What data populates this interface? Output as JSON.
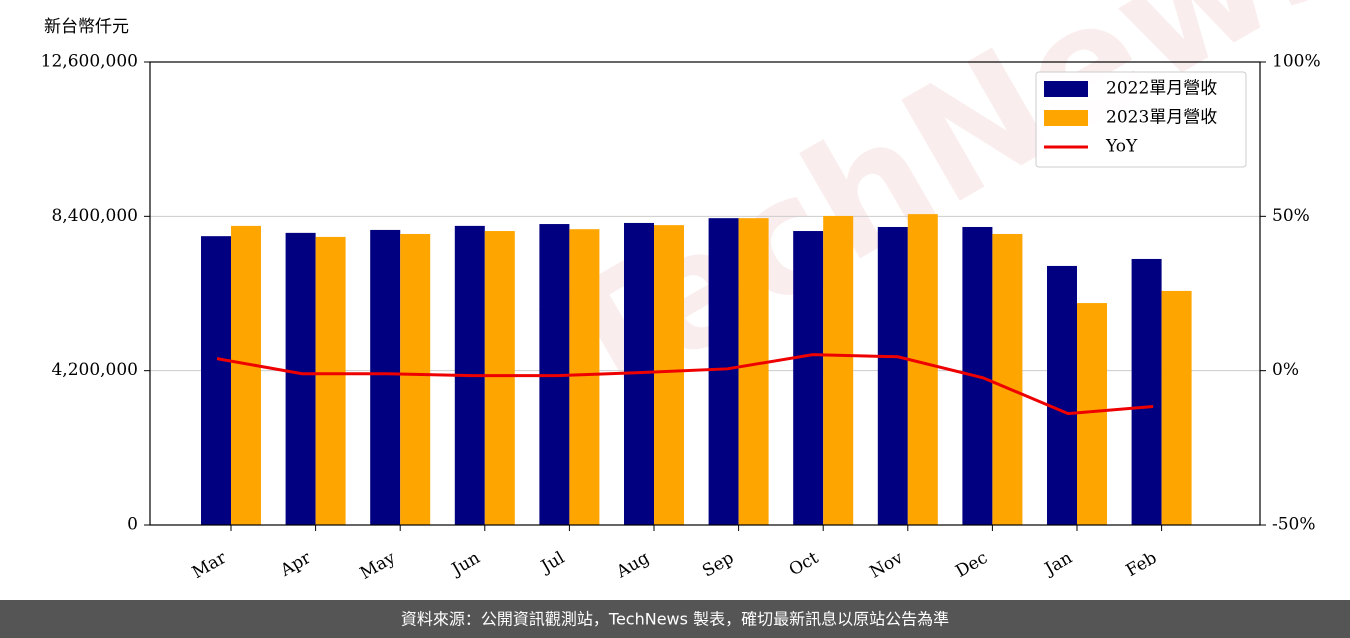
{
  "chart_data": {
    "type": "bar-line",
    "y_label": "新台幣仟元",
    "watermark": "TechNews",
    "footer": "資料來源：公開資訊觀測站，TechNews 製表，確切最新訊息以原站公告為準",
    "categories": [
      "Mar",
      "Apr",
      "May",
      "Jun",
      "Jul",
      "Aug",
      "Sep",
      "Oct",
      "Nov",
      "Dec",
      "Jan",
      "Feb"
    ],
    "series": [
      {
        "name": "2022單月營收",
        "color": "#000080",
        "kind": "bar",
        "values": [
          7860000,
          7950000,
          8030000,
          8140000,
          8190000,
          8220000,
          8350000,
          8000000,
          8110000,
          8110000,
          7050000,
          7240000
        ]
      },
      {
        "name": "2023單月營收",
        "color": "#ffa500",
        "kind": "bar",
        "values": [
          8140000,
          7840000,
          7920000,
          8000000,
          8050000,
          8160000,
          8350000,
          8410000,
          8460000,
          7920000,
          6040000,
          6370000
        ]
      },
      {
        "name": "YoY",
        "color": "#ee0000",
        "kind": "line",
        "axis": "y2",
        "values": [
          3.9,
          -1.0,
          -1.0,
          -1.6,
          -1.6,
          -0.6,
          0.6,
          5.2,
          4.5,
          -2.3,
          -13.9,
          -11.6
        ]
      }
    ],
    "ylim": [
      0,
      12600000
    ],
    "yticks": [
      0,
      {
        "value": 4200000,
        "label": "4,200,000"
      },
      {
        "value": 8400000,
        "label": "8,400,000"
      },
      {
        "value": 12600000,
        "label": "12,600,000"
      }
    ],
    "y2lim": [
      -50,
      100
    ],
    "y2ticks": [
      {
        "value": -50,
        "label": "-50%"
      },
      {
        "value": 0,
        "label": "0%"
      },
      {
        "value": 50,
        "label": "50%"
      },
      {
        "value": 100,
        "label": "100%"
      }
    ],
    "grid": true,
    "legend": "upper right"
  }
}
